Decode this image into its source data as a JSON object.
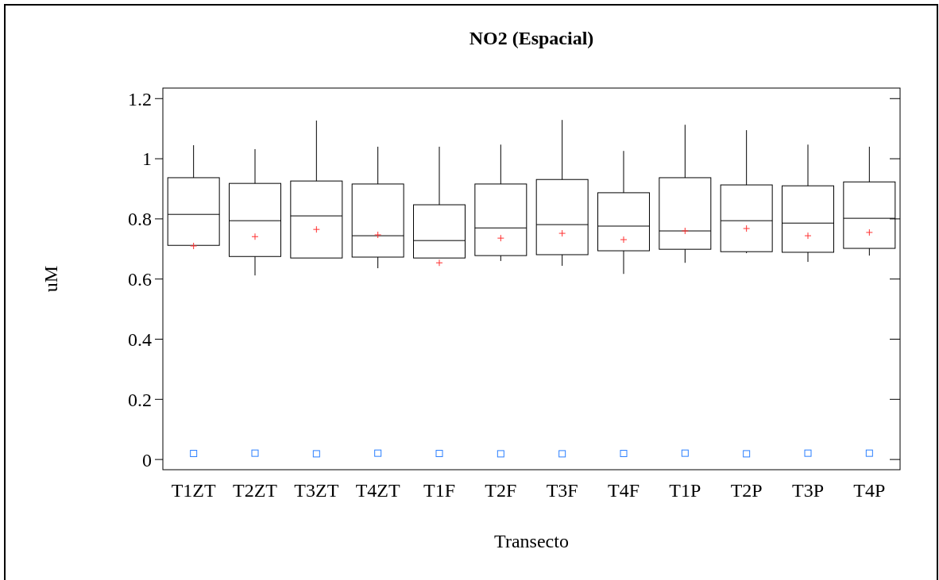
{
  "chart_data": {
    "type": "box",
    "title": "NO2 (Espacial)",
    "xlabel": "Transecto",
    "ylabel": "uM",
    "categories": [
      "T1ZT",
      "T2ZT",
      "T3ZT",
      "T4ZT",
      "T1F",
      "T2F",
      "T3F",
      "T4F",
      "T1P",
      "T2P",
      "T3P",
      "T4P"
    ],
    "ylim": [
      -0.034,
      1.235
    ],
    "yticks": [
      0,
      0.2,
      0.4,
      0.6,
      0.8,
      1,
      1.2
    ],
    "grid": false,
    "boxes": [
      {
        "low": 0.712,
        "q1": 0.712,
        "median": 0.815,
        "q3": 0.937,
        "high": 1.045,
        "mean": 0.71,
        "outliers": [
          0.02
        ]
      },
      {
        "low": 0.612,
        "q1": 0.675,
        "median": 0.794,
        "q3": 0.918,
        "high": 1.032,
        "mean": 0.741,
        "outliers": [
          0.021
        ]
      },
      {
        "low": 0.67,
        "q1": 0.67,
        "median": 0.81,
        "q3": 0.926,
        "high": 1.127,
        "mean": 0.765,
        "outliers": [
          0.019
        ]
      },
      {
        "low": 0.636,
        "q1": 0.673,
        "median": 0.744,
        "q3": 0.916,
        "high": 1.04,
        "mean": 0.747,
        "outliers": [
          0.021
        ]
      },
      {
        "low": 0.67,
        "q1": 0.67,
        "median": 0.728,
        "q3": 0.847,
        "high": 1.04,
        "mean": 0.654,
        "outliers": [
          0.02
        ]
      },
      {
        "low": 0.66,
        "q1": 0.678,
        "median": 0.77,
        "q3": 0.916,
        "high": 1.047,
        "mean": 0.736,
        "outliers": [
          0.019
        ]
      },
      {
        "low": 0.644,
        "q1": 0.681,
        "median": 0.781,
        "q3": 0.931,
        "high": 1.129,
        "mean": 0.752,
        "outliers": [
          0.019
        ]
      },
      {
        "low": 0.617,
        "q1": 0.694,
        "median": 0.776,
        "q3": 0.887,
        "high": 1.026,
        "mean": 0.731,
        "outliers": [
          0.02
        ]
      },
      {
        "low": 0.654,
        "q1": 0.699,
        "median": 0.76,
        "q3": 0.937,
        "high": 1.113,
        "mean": 0.76,
        "outliers": [
          0.021
        ]
      },
      {
        "low": 0.686,
        "q1": 0.691,
        "median": 0.794,
        "q3": 0.913,
        "high": 1.095,
        "mean": 0.768,
        "outliers": [
          0.019
        ]
      },
      {
        "low": 0.657,
        "q1": 0.689,
        "median": 0.786,
        "q3": 0.91,
        "high": 1.047,
        "mean": 0.744,
        "outliers": [
          0.021
        ]
      },
      {
        "low": 0.678,
        "q1": 0.702,
        "median": 0.802,
        "q3": 0.923,
        "high": 1.04,
        "mean": 0.755,
        "outliers": [
          0.021
        ]
      }
    ]
  }
}
